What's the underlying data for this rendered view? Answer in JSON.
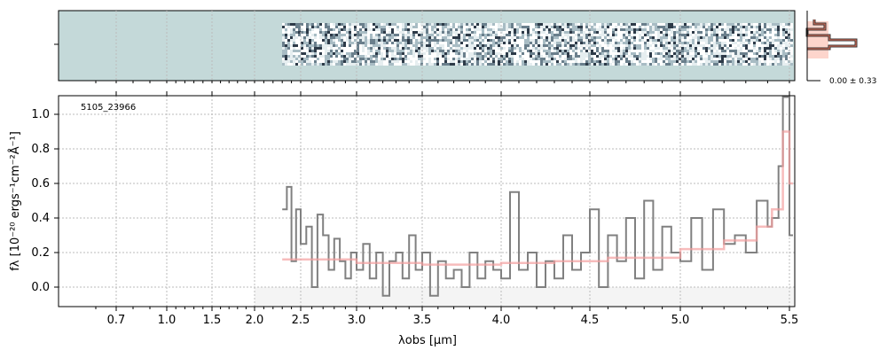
{
  "chart_data": {
    "type": "line",
    "object_label": "5105_23966",
    "xlabel": "λobs [μm]",
    "ylabel": "fλ [10⁻²⁰ ergs⁻¹cm⁻²Å⁻¹]",
    "xticks": [
      "0.7",
      "1.0",
      "1.5",
      "2.0",
      "2.5",
      "3.0",
      "3.5",
      "4.0",
      "4.5",
      "5.0",
      "5.5"
    ],
    "yticks": [
      "0.0",
      "0.2",
      "0.4",
      "0.6",
      "0.8",
      "1.0"
    ],
    "ylim": [
      -0.11,
      1.1
    ],
    "xlim": [
      0.6,
      5.52
    ],
    "grid": true,
    "series": [
      {
        "role": "flux",
        "color": "#808080",
        "x": [
          2.3,
          2.35,
          2.4,
          2.45,
          2.5,
          2.55,
          2.6,
          2.65,
          2.7,
          2.75,
          2.8,
          2.85,
          2.9,
          2.95,
          3.0,
          3.05,
          3.1,
          3.15,
          3.2,
          3.25,
          3.3,
          3.35,
          3.4,
          3.45,
          3.5,
          3.55,
          3.6,
          3.65,
          3.7,
          3.75,
          3.8,
          3.85,
          3.9,
          3.95,
          4.0,
          4.05,
          4.1,
          4.15,
          4.2,
          4.25,
          4.3,
          4.35,
          4.4,
          4.45,
          4.5,
          4.55,
          4.6,
          4.65,
          4.7,
          4.75,
          4.8,
          4.85,
          4.9,
          4.95,
          5.0,
          5.05,
          5.1,
          5.15,
          5.2,
          5.25,
          5.3,
          5.35,
          5.4,
          5.42,
          5.45,
          5.47,
          5.5
        ],
        "y": [
          0.45,
          0.58,
          0.15,
          0.45,
          0.25,
          0.35,
          0.0,
          0.42,
          0.3,
          0.1,
          0.28,
          0.15,
          0.05,
          0.2,
          0.1,
          0.25,
          0.05,
          0.2,
          -0.05,
          0.15,
          0.2,
          0.05,
          0.3,
          0.1,
          0.2,
          -0.05,
          0.15,
          0.05,
          0.1,
          0.0,
          0.2,
          0.05,
          0.15,
          0.1,
          0.05,
          0.55,
          0.1,
          0.2,
          0.0,
          0.15,
          0.05,
          0.3,
          0.1,
          0.2,
          0.45,
          0.0,
          0.3,
          0.15,
          0.4,
          0.05,
          0.5,
          0.1,
          0.35,
          0.2,
          0.15,
          0.4,
          0.1,
          0.45,
          0.25,
          0.3,
          0.2,
          0.5,
          0.35,
          0.4,
          0.7,
          1.1,
          0.3
        ]
      },
      {
        "role": "error",
        "color": "#f4a0a0",
        "x": [
          2.3,
          2.5,
          3.0,
          3.5,
          4.0,
          4.3,
          4.6,
          5.0,
          5.2,
          5.35,
          5.42,
          5.47,
          5.5
        ],
        "y": [
          0.16,
          0.16,
          0.14,
          0.13,
          0.14,
          0.15,
          0.17,
          0.22,
          0.27,
          0.35,
          0.45,
          0.9,
          0.6
        ]
      }
    ],
    "inset": {
      "label": "0.00 ± 0.33"
    }
  }
}
